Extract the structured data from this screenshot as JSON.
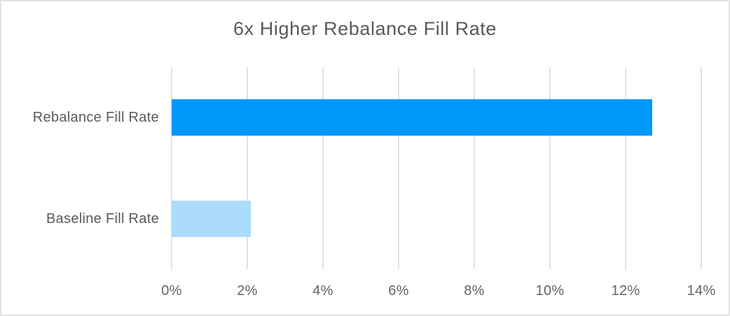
{
  "frame": {
    "background": "#ffffff",
    "border_color": "#e2e2e2"
  },
  "chart_data": {
    "type": "bar",
    "orientation": "horizontal",
    "title": "6x Higher Rebalance Fill Rate",
    "categories": [
      "Rebalance Fill Rate",
      "Baseline Fill Rate"
    ],
    "values": [
      12.7,
      2.1
    ],
    "value_unit": "%",
    "bar_colors": [
      "#0099fa",
      "#abdcfb"
    ],
    "xlim": [
      0,
      14
    ],
    "x_ticks": [
      0,
      2,
      4,
      6,
      8,
      10,
      12,
      14
    ],
    "x_tick_labels": [
      "0%",
      "2%",
      "4%",
      "6%",
      "8%",
      "10%",
      "12%",
      "14%"
    ],
    "grid": "vertical",
    "gridline_color": "#e2e2e2",
    "legend": "none",
    "title_color": "#58595b",
    "category_label_color": "#58595b",
    "tick_label_color": "#636466",
    "xlabel": "",
    "ylabel": ""
  }
}
